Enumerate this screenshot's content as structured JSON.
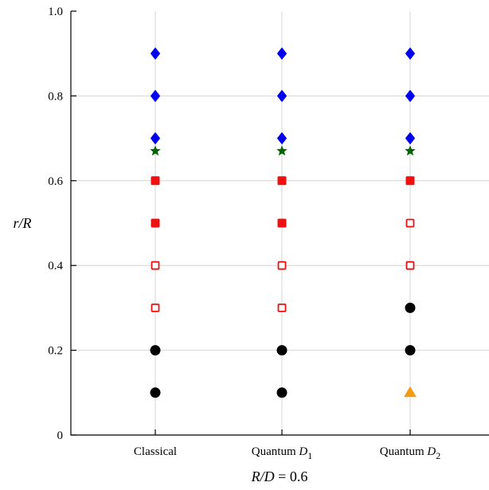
{
  "chart_data": {
    "type": "scatter",
    "categories": [
      {
        "name": "Classical",
        "sub": ""
      },
      {
        "name": "Quantum D",
        "sub": "1"
      },
      {
        "name": "Quantum D",
        "sub": "2"
      }
    ],
    "xlabel": {
      "parts": [
        {
          "text": "R/D",
          "italic": true
        },
        {
          "text": " = 0.6",
          "italic": false
        }
      ]
    },
    "ylabel": {
      "parts": [
        {
          "text": "r/R",
          "italic": true
        }
      ]
    },
    "ylim": [
      0,
      1
    ],
    "yticks": [
      {
        "value": 0,
        "label": "0"
      },
      {
        "value": 0.2,
        "label": "0.2"
      },
      {
        "value": 0.4,
        "label": "0.4"
      },
      {
        "value": 0.6,
        "label": "0.6"
      },
      {
        "value": 0.8,
        "label": "0.8"
      },
      {
        "value": 1.0,
        "label": "1.0"
      }
    ],
    "grid": true,
    "points": [
      {
        "category": 0,
        "y": 0.1,
        "marker": "circle",
        "color": "#000000",
        "filled": true
      },
      {
        "category": 0,
        "y": 0.2,
        "marker": "circle",
        "color": "#000000",
        "filled": true
      },
      {
        "category": 0,
        "y": 0.3,
        "marker": "square",
        "color": "#ee1111",
        "filled": false
      },
      {
        "category": 0,
        "y": 0.4,
        "marker": "square",
        "color": "#ee1111",
        "filled": false
      },
      {
        "category": 0,
        "y": 0.5,
        "marker": "square",
        "color": "#ee1111",
        "filled": true
      },
      {
        "category": 0,
        "y": 0.6,
        "marker": "square",
        "color": "#ee1111",
        "filled": true
      },
      {
        "category": 0,
        "y": 0.67,
        "marker": "star",
        "color": "#006400",
        "filled": true
      },
      {
        "category": 0,
        "y": 0.7,
        "marker": "diamond",
        "color": "#0000ee",
        "filled": true
      },
      {
        "category": 0,
        "y": 0.8,
        "marker": "diamond",
        "color": "#0000ee",
        "filled": true
      },
      {
        "category": 0,
        "y": 0.9,
        "marker": "diamond",
        "color": "#0000ee",
        "filled": true
      },
      {
        "category": 1,
        "y": 0.1,
        "marker": "circle",
        "color": "#000000",
        "filled": true
      },
      {
        "category": 1,
        "y": 0.2,
        "marker": "circle",
        "color": "#000000",
        "filled": true
      },
      {
        "category": 1,
        "y": 0.3,
        "marker": "square",
        "color": "#ee1111",
        "filled": false
      },
      {
        "category": 1,
        "y": 0.4,
        "marker": "square",
        "color": "#ee1111",
        "filled": false
      },
      {
        "category": 1,
        "y": 0.5,
        "marker": "square",
        "color": "#ee1111",
        "filled": true
      },
      {
        "category": 1,
        "y": 0.6,
        "marker": "square",
        "color": "#ee1111",
        "filled": true
      },
      {
        "category": 1,
        "y": 0.67,
        "marker": "star",
        "color": "#006400",
        "filled": true
      },
      {
        "category": 1,
        "y": 0.7,
        "marker": "diamond",
        "color": "#0000ee",
        "filled": true
      },
      {
        "category": 1,
        "y": 0.8,
        "marker": "diamond",
        "color": "#0000ee",
        "filled": true
      },
      {
        "category": 1,
        "y": 0.9,
        "marker": "diamond",
        "color": "#0000ee",
        "filled": true
      },
      {
        "category": 2,
        "y": 0.1,
        "marker": "triangle",
        "color": "#f39c12",
        "filled": true
      },
      {
        "category": 2,
        "y": 0.2,
        "marker": "circle",
        "color": "#000000",
        "filled": true
      },
      {
        "category": 2,
        "y": 0.3,
        "marker": "circle",
        "color": "#000000",
        "filled": true
      },
      {
        "category": 2,
        "y": 0.4,
        "marker": "square",
        "color": "#ee1111",
        "filled": false
      },
      {
        "category": 2,
        "y": 0.5,
        "marker": "square",
        "color": "#ee1111",
        "filled": false
      },
      {
        "category": 2,
        "y": 0.6,
        "marker": "square",
        "color": "#ee1111",
        "filled": true
      },
      {
        "category": 2,
        "y": 0.67,
        "marker": "star",
        "color": "#006400",
        "filled": true
      },
      {
        "category": 2,
        "y": 0.7,
        "marker": "diamond",
        "color": "#0000ee",
        "filled": true
      },
      {
        "category": 2,
        "y": 0.8,
        "marker": "diamond",
        "color": "#0000ee",
        "filled": true
      },
      {
        "category": 2,
        "y": 0.9,
        "marker": "diamond",
        "color": "#0000ee",
        "filled": true
      }
    ]
  }
}
